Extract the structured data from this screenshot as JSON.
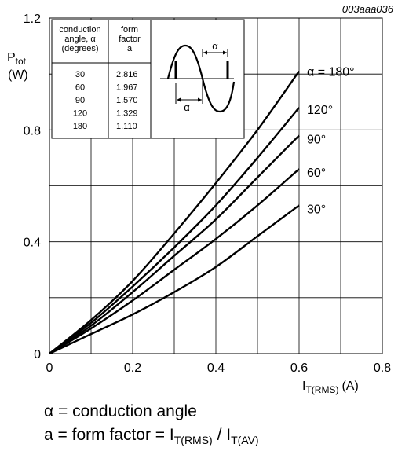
{
  "figure_id": "003aaa036",
  "chart_data": {
    "type": "line",
    "xlabel": "I",
    "xlabel_sub": "T(RMS)",
    "xlabel_unit": "(A)",
    "ylabel": "P",
    "ylabel_sub": "tot",
    "ylabel_unit": "(W)",
    "xlim": [
      0,
      0.8
    ],
    "ylim": [
      0,
      1.2
    ],
    "x_ticks": [
      "0",
      "0.2",
      "0.4",
      "0.6",
      "0.8"
    ],
    "y_ticks": [
      "0",
      "0.4",
      "0.8",
      "1.2"
    ],
    "grid": true,
    "series": [
      {
        "name": "α = 180°",
        "x": [
          0,
          0.1,
          0.2,
          0.3,
          0.4,
          0.5,
          0.6
        ],
        "y": [
          0,
          0.12,
          0.26,
          0.43,
          0.61,
          0.8,
          1.01
        ]
      },
      {
        "name": "120°",
        "x": [
          0,
          0.1,
          0.2,
          0.3,
          0.4,
          0.5,
          0.6
        ],
        "y": [
          0,
          0.11,
          0.24,
          0.38,
          0.53,
          0.7,
          0.88
        ]
      },
      {
        "name": "90°",
        "x": [
          0,
          0.1,
          0.2,
          0.3,
          0.4,
          0.5,
          0.6
        ],
        "y": [
          0,
          0.1,
          0.22,
          0.35,
          0.48,
          0.63,
          0.78
        ]
      },
      {
        "name": "60°",
        "x": [
          0,
          0.1,
          0.2,
          0.3,
          0.4,
          0.5,
          0.6
        ],
        "y": [
          0,
          0.09,
          0.19,
          0.3,
          0.41,
          0.53,
          0.66
        ]
      },
      {
        "name": "30°",
        "x": [
          0,
          0.1,
          0.2,
          0.3,
          0.4,
          0.5,
          0.6
        ],
        "y": [
          0,
          0.07,
          0.14,
          0.22,
          0.31,
          0.42,
          0.53
        ]
      }
    ],
    "inset_table": {
      "headers": [
        "conduction\nangle, α\n(degrees)",
        "form\nfactor\na"
      ],
      "rows": [
        [
          "30",
          "2.816"
        ],
        [
          "60",
          "1.967"
        ],
        [
          "90",
          "1.570"
        ],
        [
          "120",
          "1.329"
        ],
        [
          "180",
          "1.110"
        ]
      ],
      "waveform_label": "α"
    }
  },
  "footnotes": {
    "line1": "α = conduction angle",
    "line2_prefix": "a = form factor = I",
    "line2_sub1": "T(RMS)",
    "line2_mid": " / I",
    "line2_sub2": "T(AV)"
  }
}
